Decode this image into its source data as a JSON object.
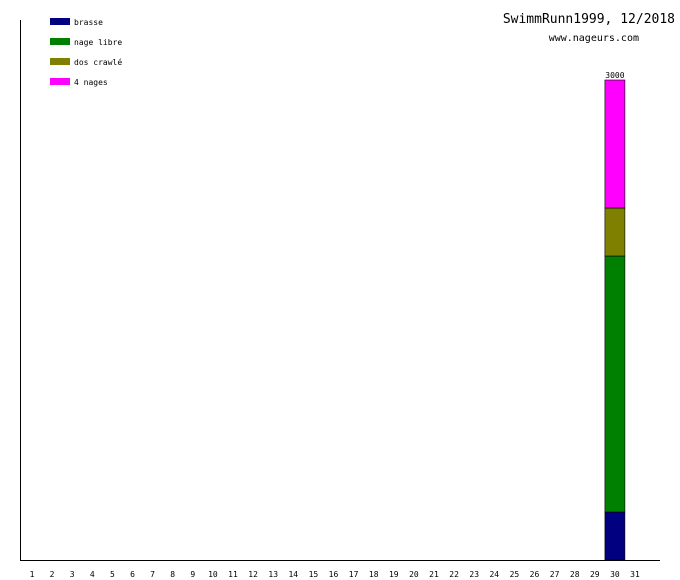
{
  "chart_data": {
    "type": "bar",
    "stacked": true,
    "title": "SwimmRunn1999, 12/2018",
    "subtitle": "www.nageurs.com",
    "categories": [
      "1",
      "2",
      "3",
      "4",
      "5",
      "6",
      "7",
      "8",
      "9",
      "10",
      "11",
      "12",
      "13",
      "14",
      "15",
      "16",
      "17",
      "18",
      "19",
      "20",
      "21",
      "22",
      "23",
      "24",
      "25",
      "26",
      "27",
      "28",
      "29",
      "30",
      "31"
    ],
    "ylim": [
      0,
      3000
    ],
    "legend_position": "top-left",
    "series": [
      {
        "name": "brasse",
        "color": "#000080",
        "values": [
          0,
          0,
          0,
          0,
          0,
          0,
          0,
          0,
          0,
          0,
          0,
          0,
          0,
          0,
          0,
          0,
          0,
          0,
          0,
          0,
          0,
          0,
          0,
          0,
          0,
          0,
          0,
          0,
          0,
          300,
          0
        ]
      },
      {
        "name": "nage libre",
        "color": "#008000",
        "values": [
          0,
          0,
          0,
          0,
          0,
          0,
          0,
          0,
          0,
          0,
          0,
          0,
          0,
          0,
          0,
          0,
          0,
          0,
          0,
          0,
          0,
          0,
          0,
          0,
          0,
          0,
          0,
          0,
          0,
          1600,
          0
        ]
      },
      {
        "name": "dos crawlé",
        "color": "#808000",
        "values": [
          0,
          0,
          0,
          0,
          0,
          0,
          0,
          0,
          0,
          0,
          0,
          0,
          0,
          0,
          0,
          0,
          0,
          0,
          0,
          0,
          0,
          0,
          0,
          0,
          0,
          0,
          0,
          0,
          0,
          300,
          0
        ]
      },
      {
        "name": "4 nages",
        "color": "#ff00ff",
        "values": [
          0,
          0,
          0,
          0,
          0,
          0,
          0,
          0,
          0,
          0,
          0,
          0,
          0,
          0,
          0,
          0,
          0,
          0,
          0,
          0,
          0,
          0,
          0,
          0,
          0,
          0,
          0,
          0,
          0,
          800,
          0
        ]
      }
    ],
    "totals": [
      {
        "category": "30",
        "label": "3000"
      }
    ]
  }
}
